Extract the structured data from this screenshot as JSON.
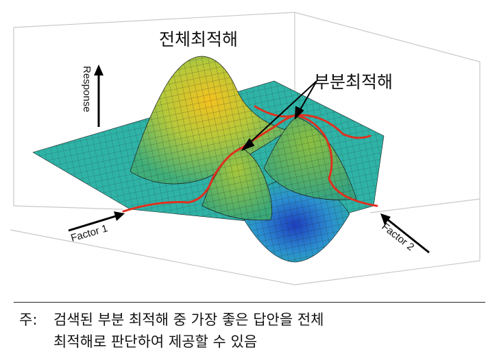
{
  "labels": {
    "global_optimum": "전체최적해",
    "local_optimum": "부분최적해",
    "response_axis": "Response",
    "factor1_axis": "Factor 1",
    "factor2_axis": "Factor 2"
  },
  "note": {
    "prefix": "주:",
    "line1": "검색된 부분 최적해 중 가장 좋은 답안을 전체",
    "line2": "최적해로 판단하여 제공할 수 있음"
  },
  "colors": {
    "surface_low": "#1e4fc8",
    "surface_mid": "#2bb0a6",
    "surface_high": "#f0c020",
    "grid_line": "#1a1a1a",
    "optimum_path": "#e0301e"
  }
}
